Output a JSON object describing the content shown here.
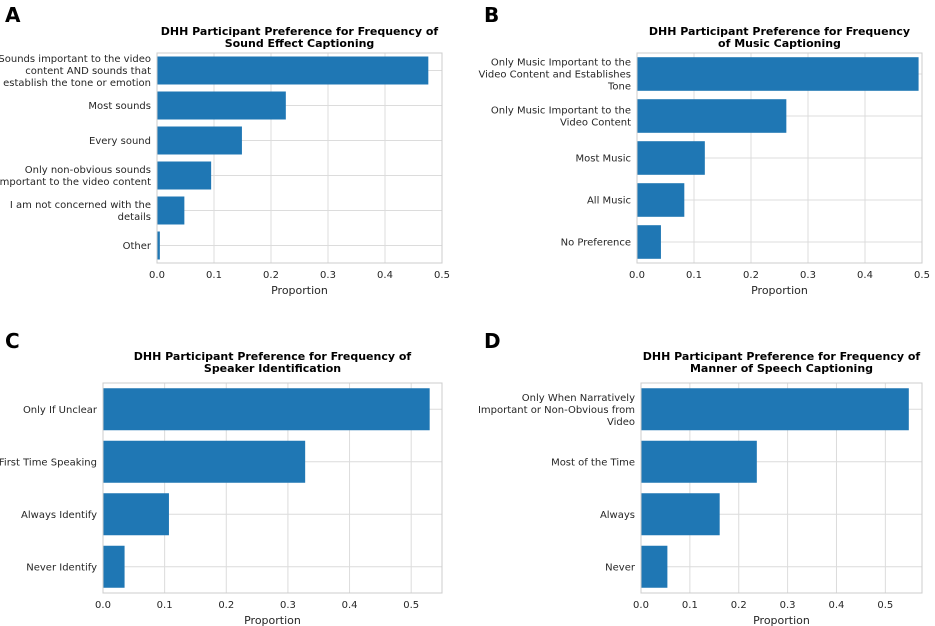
{
  "chart_data": [
    {
      "panel": "A",
      "type": "bar",
      "orientation": "horizontal",
      "title": [
        "DHH Participant Preference for Frequency of",
        "Sound Effect Captioning"
      ],
      "xlabel": "Proportion",
      "ylabel": "",
      "xlim": [
        0,
        0.5
      ],
      "xticks": [
        "0.0",
        "0.1",
        "0.2",
        "0.3",
        "0.4",
        "0.5"
      ],
      "grid": true,
      "categories": [
        [
          "Sounds important to the video",
          "content AND sounds that",
          "establish the tone or emotion"
        ],
        [
          "Most sounds"
        ],
        [
          "Every sound"
        ],
        [
          "Only non-obvious sounds",
          "important to the video content"
        ],
        [
          "I am not concerned with the",
          "details"
        ],
        [
          "Other"
        ]
      ],
      "values": [
        0.476,
        0.226,
        0.149,
        0.095,
        0.048,
        0.005
      ],
      "color": "#1f77b4"
    },
    {
      "panel": "B",
      "type": "bar",
      "orientation": "horizontal",
      "title": [
        "DHH Participant Preference for Frequency",
        "of Music Captioning"
      ],
      "xlabel": "Proportion",
      "ylabel": "",
      "xlim": [
        0,
        0.5
      ],
      "xticks": [
        "0.0",
        "0.1",
        "0.2",
        "0.3",
        "0.4",
        "0.5"
      ],
      "grid": true,
      "categories": [
        [
          "Only Music Important to the",
          "Video Content and Establishes",
          "Tone"
        ],
        [
          "Only Music Important to the",
          "Video Content"
        ],
        [
          "Most Music"
        ],
        [
          "All Music"
        ],
        [
          "No Preference"
        ]
      ],
      "values": [
        0.494,
        0.262,
        0.119,
        0.083,
        0.042
      ],
      "color": "#1f77b4"
    },
    {
      "panel": "C",
      "type": "bar",
      "orientation": "horizontal",
      "title": [
        "DHH Participant Preference for Frequency of",
        "Speaker Identification"
      ],
      "xlabel": "Proportion",
      "ylabel": "",
      "xlim": [
        0,
        0.55
      ],
      "xticks": [
        "0.0",
        "0.1",
        "0.2",
        "0.3",
        "0.4",
        "0.5"
      ],
      "grid": true,
      "categories": [
        [
          "Only If Unclear"
        ],
        [
          "First Time Speaking"
        ],
        [
          "Always Identify"
        ],
        [
          "Never Identify"
        ]
      ],
      "values": [
        0.53,
        0.328,
        0.107,
        0.035
      ],
      "color": "#1f77b4"
    },
    {
      "panel": "D",
      "type": "bar",
      "orientation": "horizontal",
      "title": [
        "DHH Participant Preference for Frequency of",
        "Manner of Speech Captioning"
      ],
      "xlabel": "Proportion",
      "ylabel": "",
      "xlim": [
        0,
        0.575
      ],
      "xticks": [
        "0.0",
        "0.1",
        "0.2",
        "0.3",
        "0.4",
        "0.5"
      ],
      "grid": true,
      "categories": [
        [
          "Only When Narratively",
          "Important or Non-Obvious from",
          "Video"
        ],
        [
          "Most of the Time"
        ],
        [
          "Always"
        ],
        [
          "Never"
        ]
      ],
      "values": [
        0.548,
        0.237,
        0.161,
        0.054
      ],
      "color": "#1f77b4"
    }
  ]
}
